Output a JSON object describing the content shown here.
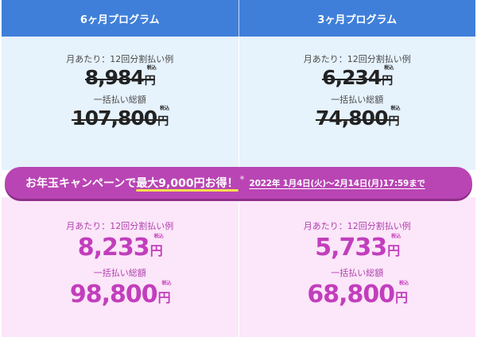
{
  "plans": [
    {
      "title": "6ヶ月プログラム",
      "regular": {
        "monthly_label": "月あたり：12回分割払い例",
        "monthly_price": "8,984",
        "lump_label": "一括払い総額",
        "lump_price": "107,800"
      },
      "campaign": {
        "monthly_label": "月あたり：12回分割払い例",
        "monthly_price": "8,233",
        "lump_label": "一括払い総額",
        "lump_price": "98,800"
      }
    },
    {
      "title": "3ヶ月プログラム",
      "regular": {
        "monthly_label": "月あたり：12回分割払い例",
        "monthly_price": "6,234",
        "lump_label": "一括払い総額",
        "lump_price": "74,800"
      },
      "campaign": {
        "monthly_label": "月あたり：12回分割払い例",
        "monthly_price": "5,733",
        "lump_label": "一括払い総額",
        "lump_price": "68,800"
      }
    }
  ],
  "currency": "円",
  "tax_label": "税込",
  "banner": {
    "prefix": "お年玉キャンペーンで",
    "highlight": "最大9,000円お得！",
    "note_mark": "※",
    "period": "2022年 1月4日(火)〜2月14日(月)17:59まで"
  },
  "colors": {
    "header_blue": "#3f7fd9",
    "regular_bg": "#e6f2fc",
    "campaign_bg": "#fce6f9",
    "banner_purple": "#b945b4",
    "campaign_price": "#c23ebc"
  }
}
